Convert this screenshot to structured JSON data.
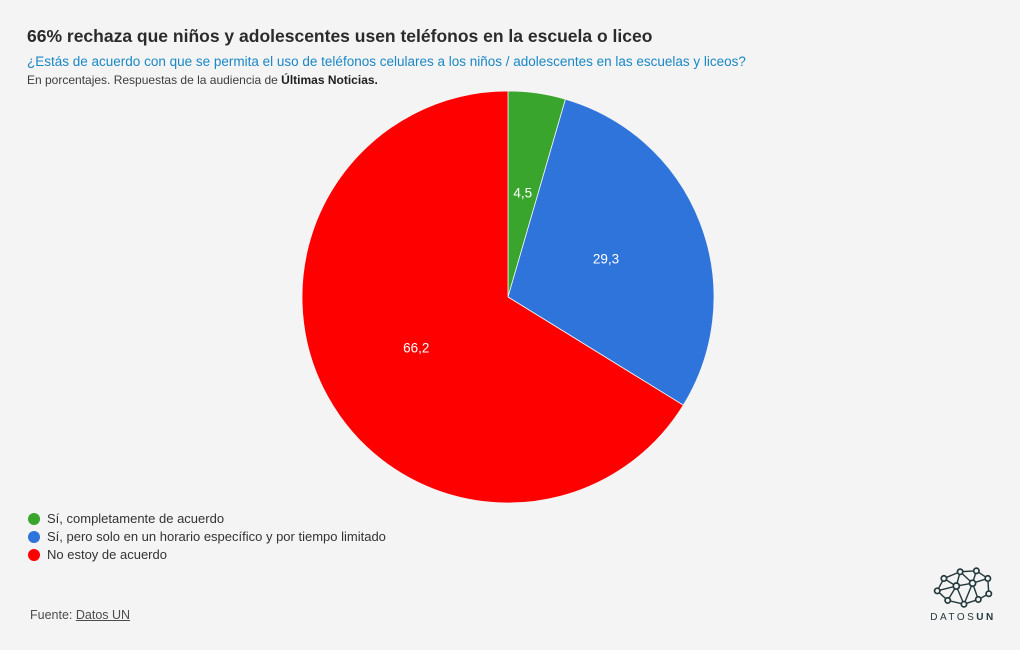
{
  "header": {
    "title": "66% rechaza que niños y adolescentes usen teléfonos en la escuela o liceo",
    "subtitle": "¿Estás de acuerdo con que se permita el uso de teléfonos celulares a los niños / adolescentes en las escuelas y liceos?",
    "description_prefix": "En porcentajes. Respuestas de la audiencia de ",
    "description_bold": "Últimas Noticias."
  },
  "chart_data": {
    "type": "pie",
    "title": "66% rechaza que niños y adolescentes usen teléfonos en la escuela o liceo",
    "units": "percent",
    "start_angle_deg": 0,
    "direction": "clockwise",
    "value_format": "comma-decimal",
    "legend_position": "bottom-left",
    "slices": [
      {
        "label": "Sí, completamente de acuerdo",
        "value": 4.5,
        "display": "4,5",
        "color": "#3aa52d"
      },
      {
        "label": "Sí, pero solo en un horario específico y por tiempo limitado",
        "value": 29.3,
        "display": "29,3",
        "color": "#2e74db"
      },
      {
        "label": "No estoy de acuerdo",
        "value": 66.2,
        "display": "66,2",
        "color": "#fe0000"
      }
    ]
  },
  "footer": {
    "source_prefix": "Fuente: ",
    "source_link": "Datos UN",
    "logo_text_regular": "DATOS",
    "logo_text_bold": "UN"
  },
  "colors": {
    "background": "#f4f4f4",
    "title_text": "#2b2b2b",
    "subtitle_text": "#1a87c6",
    "legend_text": "#333333",
    "source_text": "#4c4c4c",
    "logo": "#24393c",
    "pie_label_text": "#ffffff"
  }
}
